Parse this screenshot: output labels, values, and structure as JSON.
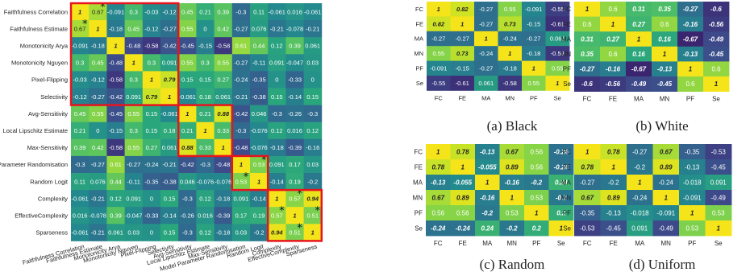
{
  "colors": {
    "scale": [
      "#3b1f6b",
      "#3e4a8a",
      "#2e6e8e",
      "#23898e",
      "#2aa67d",
      "#4fbf66",
      "#8bd645",
      "#c9e226",
      "#f5e41a"
    ],
    "highlight": "#e8141d",
    "text_dark": "#222222",
    "text_light": "#ffffff"
  },
  "chart_data": [
    {
      "type": "heatmap",
      "id": "main",
      "labels": [
        "Faithfulness Correlation",
        "Faithfulness Estimate",
        "Monotonicity Arya",
        "Monotonicity Nguyen",
        "Pixel-Flipping",
        "Selectivity",
        "Avg-Sensitivity",
        "Local Lipschitz Estimate",
        "Max-Sensitivity",
        "Model Parameter Randomisation",
        "Random Logit",
        "Complexity",
        "EffectiveComplexity",
        "Sparseness"
      ],
      "x_tick_labels": [
        "Faithfulness Correlation",
        "Faithfulness Estimate",
        "Monotonicity Arya",
        "Monotonicity Nguyen",
        "Pixel-Flipping",
        "Selectivity",
        "Avg-Sensitivity",
        "Local Lipschitz Estimate",
        "Max-Sensitivity",
        "Model Parameter Randomisation",
        "Random Logit",
        "Complexity",
        "EffectiveComplexity",
        "Sparseness"
      ],
      "values": [
        [
          "1",
          "0.67",
          "-0.091",
          "0.3",
          "-0.03",
          "-0.12",
          "0.45",
          "0.21",
          "0.39",
          "-0.3",
          "0.11",
          "-0.061",
          "0.016",
          "-0.061"
        ],
        [
          "0.67",
          "1",
          "-0.18",
          "0.45",
          "-0.12",
          "-0.27",
          "0.55",
          "0",
          "0.42",
          "-0.27",
          "0.076",
          "-0.21",
          "-0.078",
          "-0.21"
        ],
        [
          "-0.091",
          "-0.18",
          "1",
          "-0.48",
          "-0.58",
          "-0.42",
          "-0.45",
          "-0.15",
          "-0.58",
          "0.61",
          "0.44",
          "0.12",
          "0.39",
          "0.061"
        ],
        [
          "0.3",
          "0.45",
          "-0.48",
          "1",
          "0.3",
          "0.091",
          "0.55",
          "0.3",
          "0.55",
          "-0.27",
          "-0.11",
          "0.091",
          "-0.047",
          "0.03"
        ],
        [
          "-0.03",
          "-0.12",
          "-0.58",
          "0.3",
          "1",
          "0.79",
          "0.15",
          "0.15",
          "0.27",
          "-0.24",
          "-0.35",
          "0",
          "-0.33",
          "0"
        ],
        [
          "-0.12",
          "-0.27",
          "-0.42",
          "0.091",
          "0.79",
          "1",
          "-0.061",
          "0.18",
          "0.061",
          "-0.21",
          "-0.38",
          "0.15",
          "-0.14",
          "0.15"
        ],
        [
          "0.45",
          "0.55",
          "-0.45",
          "0.55",
          "0.15",
          "-0.061",
          "1",
          "0.21",
          "0.88",
          "-0.42",
          "0.046",
          "-0.3",
          "-0.26",
          "-0.3"
        ],
        [
          "0.21",
          "0",
          "-0.15",
          "0.3",
          "0.15",
          "0.18",
          "0.21",
          "1",
          "0.33",
          "-0.3",
          "-0.076",
          "0.12",
          "0.016",
          "0.12"
        ],
        [
          "0.39",
          "0.42",
          "-0.58",
          "0.55",
          "0.27",
          "0.061",
          "0.88",
          "0.33",
          "1",
          "-0.48",
          "-0.076",
          "-0.18",
          "-0.39",
          "-0.16"
        ],
        [
          "-0.3",
          "-0.27",
          "0.61",
          "-0.27",
          "-0.24",
          "-0.21",
          "-0.42",
          "-0.3",
          "-0.48",
          "1",
          "0.53",
          "0.091",
          "0.17",
          "0.03"
        ],
        [
          "0.11",
          "0.076",
          "0.44",
          "-0.11",
          "-0.35",
          "-0.38",
          "0.046",
          "-0.076",
          "-0.076",
          "0.53",
          "1",
          "-0.14",
          "0.19",
          "-0.2"
        ],
        [
          "-0.061",
          "-0.21",
          "0.12",
          "0.091",
          "0",
          "0.15",
          "-0.3",
          "0.12",
          "-0.18",
          "0.091",
          "-0.14",
          "1",
          "0.57",
          "0.94"
        ],
        [
          "0.016",
          "-0.078",
          "0.39",
          "-0.047",
          "-0.33",
          "-0.14",
          "-0.26",
          "0.016",
          "-0.39",
          "0.17",
          "0.19",
          "0.57",
          "1",
          "0.51"
        ],
        [
          "-0.061",
          "-0.21",
          "0.061",
          "0.03",
          "0",
          "0.15",
          "-0.3",
          "0.12",
          "-0.18",
          "0.03",
          "-0.2",
          "0.94",
          "0.51",
          "1"
        ]
      ],
      "bold": [
        [
          0,
          0
        ],
        [
          1,
          1
        ],
        [
          2,
          2
        ],
        [
          3,
          3
        ],
        [
          4,
          4
        ],
        [
          5,
          5
        ],
        [
          6,
          6
        ],
        [
          7,
          7
        ],
        [
          8,
          8
        ],
        [
          9,
          9
        ],
        [
          10,
          10
        ],
        [
          11,
          11
        ],
        [
          12,
          12
        ],
        [
          13,
          13
        ],
        [
          4,
          5
        ],
        [
          5,
          4
        ],
        [
          6,
          8
        ],
        [
          8,
          6
        ],
        [
          11,
          13
        ],
        [
          13,
          11
        ]
      ],
      "stars": [
        [
          0,
          1
        ],
        [
          1,
          0
        ],
        [
          9,
          10
        ],
        [
          10,
          9
        ],
        [
          11,
          12
        ],
        [
          12,
          11
        ],
        [
          12,
          13
        ],
        [
          13,
          12
        ]
      ],
      "highlight_blocks": [
        [
          0,
          5
        ],
        [
          6,
          8
        ],
        [
          9,
          10
        ],
        [
          11,
          13
        ]
      ],
      "grid": false,
      "legend": "none"
    },
    {
      "type": "heatmap",
      "id": "black",
      "caption": "(a) Black",
      "labels": [
        "FC",
        "FE",
        "MA",
        "MN",
        "PF",
        "Se"
      ],
      "values": [
        [
          "1",
          "0.82",
          "-0.27",
          "0.55",
          "-0.091",
          "-0.55"
        ],
        [
          "0.82",
          "1",
          "-0.27",
          "0.73",
          "-0.15",
          "-0.61"
        ],
        [
          "-0.27",
          "-0.27",
          "1",
          "-0.24",
          "-0.27",
          "0.061"
        ],
        [
          "0.55",
          "0.73",
          "-0.24",
          "1",
          "-0.18",
          "-0.58"
        ],
        [
          "-0.091",
          "-0.15",
          "-0.27",
          "-0.18",
          "1",
          "0.55"
        ],
        [
          "-0.55",
          "-0.61",
          "0.061",
          "-0.58",
          "0.55",
          "1"
        ]
      ],
      "bold": [
        [
          0,
          0
        ],
        [
          1,
          1
        ],
        [
          2,
          2
        ],
        [
          3,
          3
        ],
        [
          4,
          4
        ],
        [
          5,
          5
        ],
        [
          0,
          1
        ],
        [
          1,
          0
        ],
        [
          1,
          3
        ],
        [
          3,
          1
        ]
      ]
    },
    {
      "type": "heatmap",
      "id": "white",
      "caption": "(b) White",
      "labels": [
        "FC",
        "FE",
        "MA",
        "MN",
        "PF",
        "Se"
      ],
      "values": [
        [
          "1",
          "0.6",
          "0.31",
          "0.35",
          "-0.27",
          "-0.6"
        ],
        [
          "0.6",
          "1",
          "0.27",
          "0.6",
          "-0.16",
          "-0.56"
        ],
        [
          "0.31",
          "0.27",
          "1",
          "0.16",
          "-0.67",
          "-0.49"
        ],
        [
          "0.35",
          "0.6",
          "0.16",
          "1",
          "-0.13",
          "-0.45"
        ],
        [
          "-0.27",
          "-0.16",
          "-0.67",
          "-0.13",
          "1",
          "0.6"
        ],
        [
          "-0.6",
          "-0.56",
          "-0.49",
          "-0.45",
          "0.6",
          "1"
        ]
      ],
      "bold": [
        [
          0,
          0
        ],
        [
          1,
          1
        ],
        [
          2,
          2
        ],
        [
          3,
          3
        ],
        [
          4,
          4
        ],
        [
          5,
          5
        ],
        [
          0,
          2
        ],
        [
          0,
          3
        ],
        [
          0,
          4
        ],
        [
          0,
          5
        ],
        [
          1,
          2
        ],
        [
          1,
          4
        ],
        [
          1,
          5
        ],
        [
          2,
          0
        ],
        [
          2,
          1
        ],
        [
          2,
          3
        ],
        [
          2,
          4
        ],
        [
          2,
          5
        ],
        [
          3,
          0
        ],
        [
          3,
          2
        ],
        [
          3,
          4
        ],
        [
          3,
          5
        ],
        [
          4,
          0
        ],
        [
          4,
          1
        ],
        [
          4,
          2
        ],
        [
          4,
          3
        ],
        [
          5,
          0
        ],
        [
          5,
          1
        ],
        [
          5,
          2
        ],
        [
          5,
          3
        ]
      ]
    },
    {
      "type": "heatmap",
      "id": "random",
      "caption": "(c) Random",
      "labels": [
        "FC",
        "FE",
        "MA",
        "MN",
        "PF",
        "Se"
      ],
      "values": [
        [
          "1",
          "0.78",
          "-0.13",
          "0.67",
          "0.56",
          "-0.24"
        ],
        [
          "0.78",
          "1",
          "-0.055",
          "0.89",
          "0.56",
          "-0.24"
        ],
        [
          "-0.13",
          "-0.055",
          "1",
          "-0.16",
          "-0.2",
          "0.24"
        ],
        [
          "0.67",
          "0.89",
          "-0.16",
          "1",
          "0.53",
          "-0.2"
        ],
        [
          "0.56",
          "0.56",
          "-0.2",
          "0.53",
          "1",
          "0.2"
        ],
        [
          "-0.24",
          "-0.24",
          "0.24",
          "-0.2",
          "0.2",
          "1"
        ]
      ],
      "bold": [
        [
          0,
          0
        ],
        [
          1,
          1
        ],
        [
          2,
          2
        ],
        [
          3,
          3
        ],
        [
          4,
          4
        ],
        [
          5,
          5
        ],
        [
          0,
          1
        ],
        [
          1,
          0
        ],
        [
          0,
          3
        ],
        [
          3,
          0
        ],
        [
          1,
          3
        ],
        [
          3,
          1
        ],
        [
          0,
          2
        ],
        [
          0,
          5
        ],
        [
          1,
          2
        ],
        [
          1,
          5
        ],
        [
          2,
          0
        ],
        [
          2,
          1
        ],
        [
          2,
          3
        ],
        [
          2,
          4
        ],
        [
          2,
          5
        ],
        [
          3,
          2
        ],
        [
          3,
          5
        ],
        [
          4,
          2
        ],
        [
          4,
          5
        ],
        [
          5,
          0
        ],
        [
          5,
          1
        ],
        [
          5,
          2
        ],
        [
          5,
          3
        ],
        [
          5,
          4
        ]
      ]
    },
    {
      "type": "heatmap",
      "id": "uniform",
      "caption": "(d) Uniform",
      "labels": [
        "FC",
        "FE",
        "MA",
        "MN",
        "PF",
        "Se"
      ],
      "values": [
        [
          "1",
          "0.78",
          "-0.27",
          "0.67",
          "-0.35",
          "-0.53"
        ],
        [
          "0.78",
          "1",
          "-0.2",
          "0.89",
          "-0.13",
          "-0.45"
        ],
        [
          "-0.27",
          "-0.2",
          "1",
          "-0.24",
          "-0.018",
          "0.091"
        ],
        [
          "0.67",
          "0.89",
          "-0.24",
          "1",
          "-0.091",
          "-0.49"
        ],
        [
          "-0.35",
          "-0.13",
          "-0.018",
          "-0.091",
          "1",
          "0.53"
        ],
        [
          "-0.53",
          "-0.45",
          "0.091",
          "-0.49",
          "0.53",
          "1"
        ]
      ],
      "bold": [
        [
          0,
          0
        ],
        [
          1,
          1
        ],
        [
          2,
          2
        ],
        [
          3,
          3
        ],
        [
          4,
          4
        ],
        [
          5,
          5
        ],
        [
          0,
          1
        ],
        [
          1,
          0
        ],
        [
          0,
          3
        ],
        [
          3,
          0
        ],
        [
          1,
          3
        ],
        [
          3,
          1
        ]
      ]
    }
  ]
}
